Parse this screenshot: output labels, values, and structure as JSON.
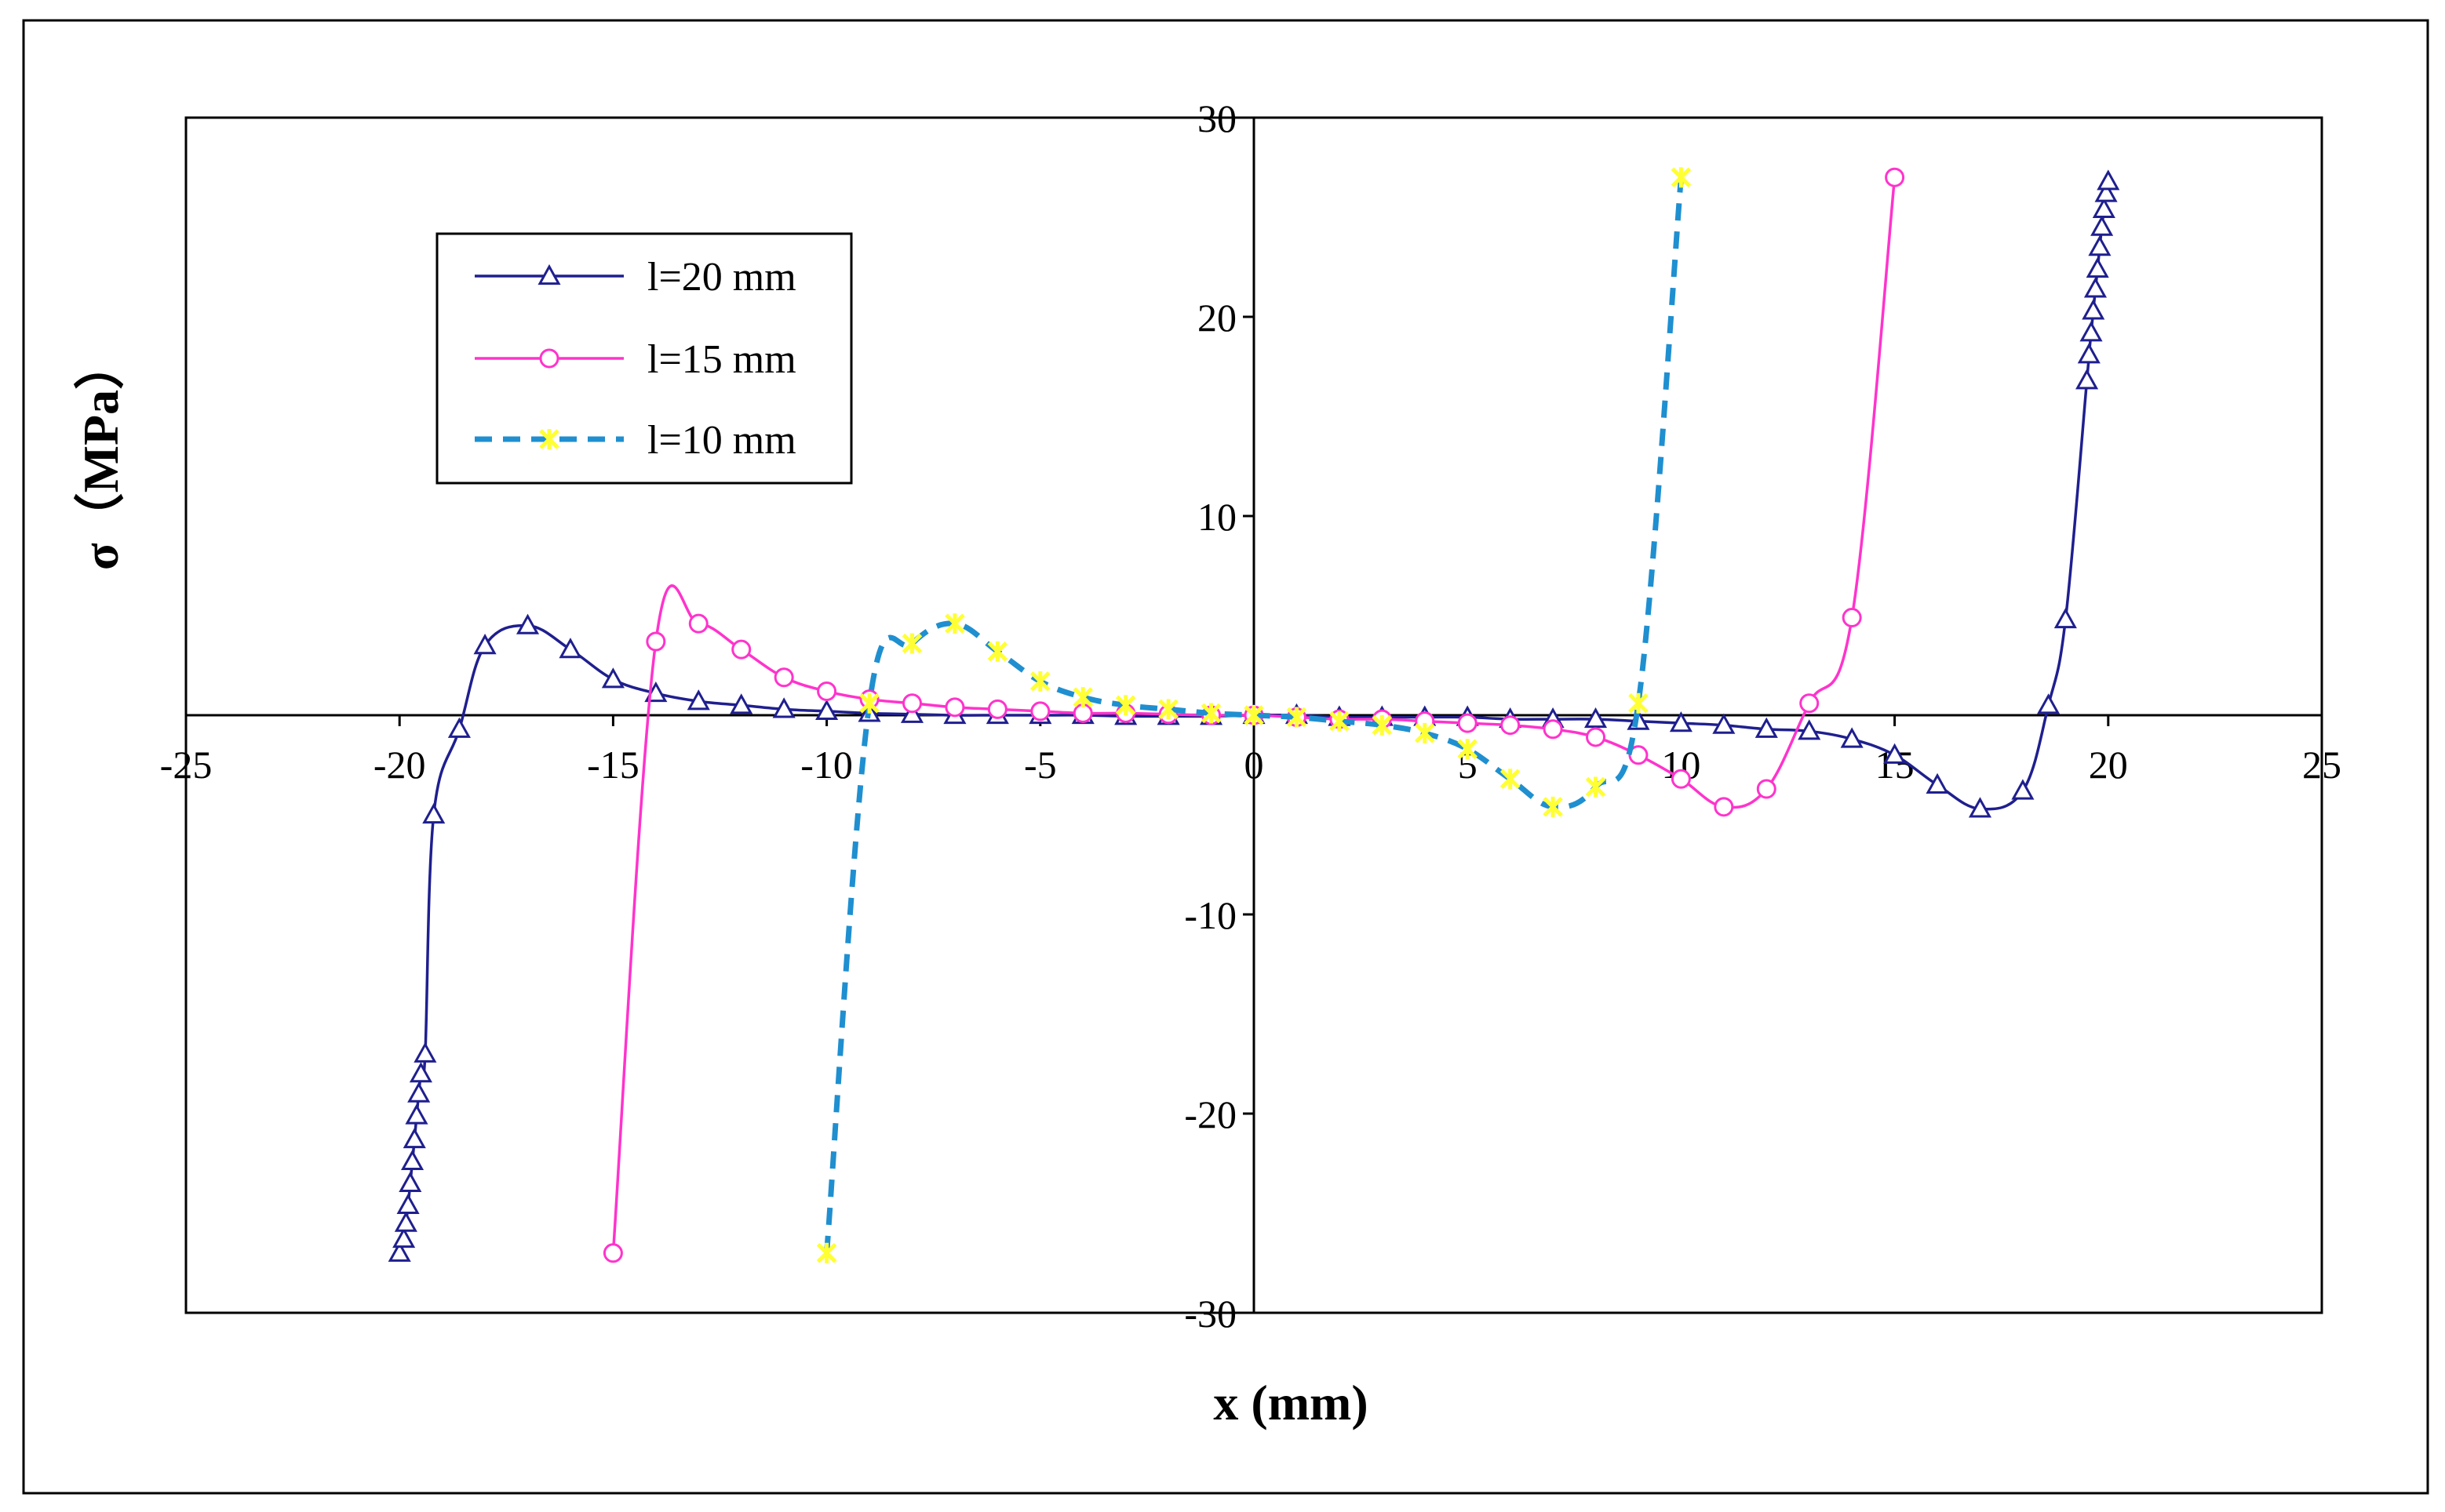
{
  "chart_data": {
    "type": "line",
    "title": "",
    "xlabel": "x (mm)",
    "ylabel": "σ（MPa）",
    "xlim": [
      -25,
      25
    ],
    "ylim": [
      -30,
      30
    ],
    "x_ticks": [
      -25,
      -20,
      -15,
      -10,
      -5,
      0,
      5,
      10,
      15,
      20,
      25
    ],
    "y_ticks": [
      -30,
      -20,
      -10,
      0,
      10,
      20,
      30
    ],
    "x_tick_labels": [
      "-25",
      "-20",
      "-15",
      "-10",
      "-5",
      "0",
      "5",
      "10",
      "15",
      "20",
      "25"
    ],
    "y_tick_labels": [
      "-30",
      "-20",
      "-10",
      "0",
      "10",
      "20",
      "30"
    ],
    "legend_position": "top-left",
    "series": [
      {
        "name": "l=20 mm",
        "color": "#1f1f8f",
        "marker": "triangle",
        "marker_color": "#1f1f8f",
        "dashed": false,
        "x": [
          -20,
          -19.9,
          -19.85,
          -19.8,
          -19.75,
          -19.7,
          -19.65,
          -19.6,
          -19.55,
          -19.5,
          -19.4,
          -19.2,
          -18.6,
          -18,
          -17,
          -16,
          -15,
          -14,
          -13,
          -12,
          -11,
          -10,
          -9,
          -8,
          -7,
          -6,
          -5,
          -4,
          -3,
          -2,
          -1,
          0,
          1,
          2,
          3,
          4,
          5,
          6,
          7,
          8,
          9,
          10,
          11,
          12,
          13,
          14,
          15,
          16,
          17,
          18,
          18.6,
          19,
          19.5,
          19.55,
          19.6,
          19.65,
          19.7,
          19.75,
          19.8,
          19.85,
          19.9,
          19.95,
          20
        ],
        "values": [
          -27,
          -26.3,
          -25.5,
          -24.6,
          -23.5,
          -22.4,
          -21.3,
          -20.1,
          -19,
          -18,
          -17,
          -5,
          -0.7,
          3.5,
          4.5,
          3.3,
          1.8,
          1.1,
          0.7,
          0.5,
          0.3,
          0.2,
          0.1,
          0.05,
          0,
          0,
          0,
          0,
          -0.05,
          -0.05,
          -0.05,
          0,
          0,
          -0.1,
          -0.1,
          -0.1,
          -0.1,
          -0.2,
          -0.2,
          -0.2,
          -0.3,
          -0.4,
          -0.5,
          -0.7,
          -0.8,
          -1.2,
          -2,
          -3.5,
          -4.7,
          -3.8,
          0.5,
          4.8,
          16.8,
          18.1,
          19.2,
          20.3,
          21.4,
          22.4,
          23.5,
          24.5,
          25.4,
          26.2,
          26.8
        ]
      },
      {
        "name": "l=15 mm",
        "color": "#ff33cc",
        "marker": "circle",
        "marker_color": "#ff33cc",
        "dashed": false,
        "x": [
          -15,
          -14,
          -13,
          -12,
          -11,
          -10,
          -9,
          -8,
          -7,
          -6,
          -5,
          -4,
          -3,
          -2,
          -1,
          0,
          1,
          2,
          3,
          4,
          5,
          6,
          7,
          8,
          9,
          10,
          11,
          12,
          13,
          14,
          15
        ],
        "values": [
          -27,
          3.7,
          4.6,
          3.3,
          1.9,
          1.2,
          0.8,
          0.6,
          0.4,
          0.3,
          0.2,
          0.1,
          0.1,
          0.05,
          0,
          0,
          -0.1,
          -0.2,
          -0.2,
          -0.3,
          -0.4,
          -0.5,
          -0.7,
          -1.1,
          -2,
          -3.2,
          -4.6,
          -3.7,
          0.6,
          4.9,
          27
        ]
      },
      {
        "name": "l=10 mm",
        "color": "#1f8fd0",
        "marker": "star",
        "marker_color": "#ffff33",
        "dashed": true,
        "x": [
          -10,
          -9,
          -8,
          -7,
          -6,
          -5,
          -4,
          -3,
          -2,
          -1,
          0,
          1,
          2,
          3,
          4,
          5,
          6,
          7,
          8,
          9,
          10
        ],
        "values": [
          -27,
          0.6,
          3.6,
          4.6,
          3.2,
          1.7,
          0.9,
          0.5,
          0.3,
          0.1,
          0,
          -0.1,
          -0.3,
          -0.5,
          -0.9,
          -1.7,
          -3.2,
          -4.6,
          -3.6,
          0.6,
          27
        ]
      }
    ]
  }
}
